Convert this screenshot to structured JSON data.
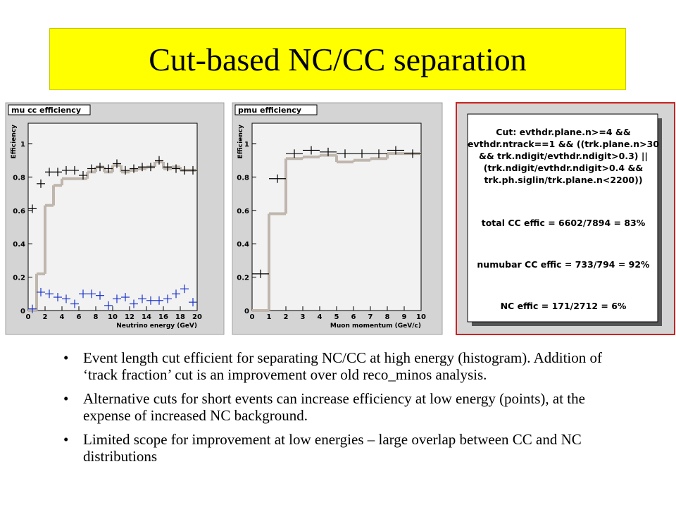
{
  "title": "Cut-based NC/CC separation",
  "chart_data": [
    {
      "type": "histogram",
      "title": "mu cc efficiency",
      "ylabel": "Efficiency",
      "xlabel": "Neutrino energy (GeV)",
      "bins": [
        0,
        1,
        2,
        3,
        4,
        5,
        6,
        7,
        8,
        9,
        10,
        11,
        12,
        13,
        14,
        15,
        16,
        17,
        18,
        19,
        20
      ],
      "xlim": [
        0,
        20
      ],
      "xticks": [
        0,
        2,
        4,
        6,
        8,
        10,
        12,
        14,
        16,
        18,
        20
      ],
      "ylim": [
        0,
        1.08
      ],
      "yticks": [
        0,
        0.2,
        0.4,
        0.6,
        0.8,
        1
      ],
      "series": [
        {
          "style": "step",
          "color": "#bfb6ad",
          "values": [
            0,
            0.22,
            0.63,
            0.75,
            0.79,
            0.79,
            0.79,
            0.83,
            0.86,
            0.83,
            0.87,
            0.83,
            0.84,
            0.85,
            0.86,
            0.89,
            0.85,
            0.86,
            0.84,
            0.84
          ]
        },
        {
          "style": "points",
          "color": "#000000",
          "values": [
            0.61,
            0.76,
            0.83,
            0.83,
            0.84,
            0.84,
            0.81,
            0.85,
            0.86,
            0.85,
            0.88,
            0.84,
            0.85,
            0.86,
            0.86,
            0.9,
            0.86,
            0.85,
            0.84,
            0.84
          ]
        },
        {
          "style": "points",
          "color": "#1a33cc",
          "values": [
            0.01,
            0.11,
            0.1,
            0.08,
            0.07,
            0.04,
            0.1,
            0.1,
            0.09,
            0.03,
            0.07,
            0.08,
            0.04,
            0.07,
            0.06,
            0.06,
            0.07,
            0.1,
            0.13,
            0.05
          ]
        }
      ]
    },
    {
      "type": "histogram",
      "title": "pmu efficiency",
      "ylabel": "Efficiency",
      "xlabel": "Muon momentum (GeV/c)",
      "bins": [
        0,
        1,
        2,
        3,
        4,
        5,
        6,
        7,
        8,
        9,
        10
      ],
      "xlim": [
        0,
        10
      ],
      "xticks": [
        0,
        1,
        2,
        3,
        4,
        5,
        6,
        7,
        8,
        9,
        10
      ],
      "ylim": [
        0,
        1.08
      ],
      "yticks": [
        0,
        0.2,
        0.4,
        0.6,
        0.8,
        1
      ],
      "series": [
        {
          "style": "step",
          "color": "#bfb6ad",
          "values": [
            0,
            0.58,
            0.91,
            0.92,
            0.93,
            0.89,
            0.9,
            0.91,
            0.94,
            0.94
          ]
        },
        {
          "style": "points",
          "color": "#000000",
          "values": [
            0.22,
            0.79,
            0.94,
            0.96,
            0.95,
            0.94,
            0.94,
            0.94,
            0.96,
            0.94
          ]
        }
      ]
    }
  ],
  "cut_box": {
    "lines": [
      "Cut: evthdr.plane.n>=4 &&",
      "evthdr.ntrack==1 && ((trk.plane.n>30",
      "&& trk.ndigit/evthdr.ndigit>0.3) ||",
      "(trk.ndigit/evthdr.ndigit>0.4 &&",
      "trk.ph.siglin/trk.plane.n<2200))"
    ],
    "results": [
      "total CC effic = 6602/7894 = 83%",
      "numubar CC effic = 733/794 = 92%",
      "NC effic = 171/2712 = 6%"
    ]
  },
  "bullets": [
    "Event length cut efficient for separating NC/CC at high energy (histogram). Addition of ‘track fraction’ cut is an improvement over old reco_minos analysis.",
    "Alternative cuts for short events can increase efficiency at low energy (points), at the expense of increased NC background.",
    "Limited scope for improvement at low energies – large overlap between CC and NC distributions"
  ]
}
